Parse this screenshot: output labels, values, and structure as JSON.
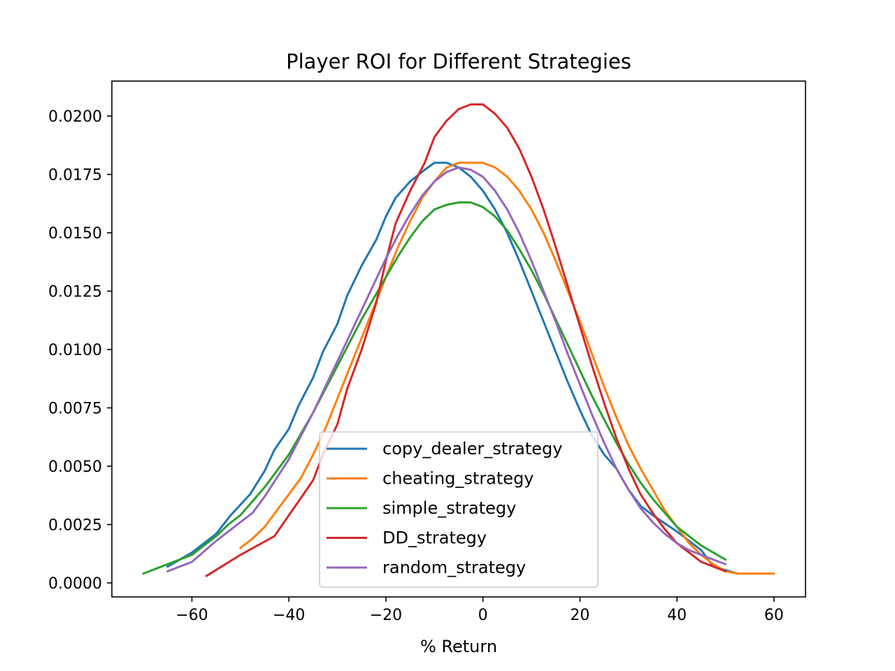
{
  "chart_data": {
    "type": "line",
    "title": "Player ROI for Different Strategies",
    "xlabel": "% Return",
    "ylabel": "",
    "xlim": [
      -76.5,
      66.5
    ],
    "ylim": [
      -0.0006,
      0.0215
    ],
    "x_ticks": [
      {
        "value": -60,
        "label": "−60"
      },
      {
        "value": -40,
        "label": "−40"
      },
      {
        "value": -20,
        "label": "−20"
      },
      {
        "value": 0,
        "label": "0"
      },
      {
        "value": 20,
        "label": "20"
      },
      {
        "value": 40,
        "label": "40"
      },
      {
        "value": 60,
        "label": "60"
      }
    ],
    "y_ticks": [
      {
        "value": 0.0,
        "label": "0.0000"
      },
      {
        "value": 0.0025,
        "label": "0.0025"
      },
      {
        "value": 0.005,
        "label": "0.0050"
      },
      {
        "value": 0.0075,
        "label": "0.0075"
      },
      {
        "value": 0.01,
        "label": "0.0100"
      },
      {
        "value": 0.0125,
        "label": "0.0125"
      },
      {
        "value": 0.015,
        "label": "0.0150"
      },
      {
        "value": 0.0175,
        "label": "0.0175"
      },
      {
        "value": 0.02,
        "label": "0.0200"
      }
    ],
    "grid": false,
    "legend": "lower center",
    "series": [
      {
        "name": "copy_dealer_strategy",
        "color": "#1f77b4",
        "points": [
          [
            -65,
            0.0007
          ],
          [
            -60,
            0.0013
          ],
          [
            -55,
            0.0021
          ],
          [
            -52,
            0.0029
          ],
          [
            -48,
            0.0038
          ],
          [
            -45,
            0.0048
          ],
          [
            -43,
            0.0057
          ],
          [
            -40,
            0.0066
          ],
          [
            -38,
            0.0076
          ],
          [
            -35,
            0.0088
          ],
          [
            -33,
            0.0099
          ],
          [
            -30,
            0.0111
          ],
          [
            -28,
            0.0123
          ],
          [
            -25,
            0.0136
          ],
          [
            -22,
            0.0147
          ],
          [
            -20,
            0.0157
          ],
          [
            -18,
            0.0165
          ],
          [
            -15,
            0.0172
          ],
          [
            -12,
            0.0177
          ],
          [
            -10,
            0.018
          ],
          [
            -7.5,
            0.018
          ],
          [
            -5,
            0.0178
          ],
          [
            -2.5,
            0.0174
          ],
          [
            0,
            0.0168
          ],
          [
            2.5,
            0.016
          ],
          [
            5,
            0.015
          ],
          [
            7.5,
            0.0138
          ],
          [
            10,
            0.0125
          ],
          [
            12.5,
            0.0112
          ],
          [
            15,
            0.0099
          ],
          [
            17.5,
            0.0086
          ],
          [
            20,
            0.0074
          ],
          [
            22.5,
            0.0063
          ],
          [
            25,
            0.0055
          ],
          [
            27.5,
            0.0049
          ],
          [
            30,
            0.004
          ],
          [
            32.5,
            0.0033
          ],
          [
            35,
            0.0029
          ],
          [
            40,
            0.0022
          ],
          [
            45,
            0.0014
          ],
          [
            47.5,
            0.0007
          ],
          [
            52.5,
            0.0004
          ]
        ]
      },
      {
        "name": "cheating_strategy",
        "color": "#ff7f0e",
        "points": [
          [
            -50,
            0.0015
          ],
          [
            -47.5,
            0.0019
          ],
          [
            -45,
            0.0024
          ],
          [
            -42.5,
            0.0031
          ],
          [
            -40,
            0.0038
          ],
          [
            -37.5,
            0.0045
          ],
          [
            -35,
            0.0055
          ],
          [
            -32.5,
            0.0066
          ],
          [
            -30,
            0.0079
          ],
          [
            -27.5,
            0.0092
          ],
          [
            -25,
            0.0105
          ],
          [
            -22.5,
            0.0118
          ],
          [
            -20,
            0.0131
          ],
          [
            -17.5,
            0.0144
          ],
          [
            -15,
            0.0155
          ],
          [
            -12.5,
            0.0165
          ],
          [
            -10,
            0.0172
          ],
          [
            -7.5,
            0.0178
          ],
          [
            -5,
            0.018
          ],
          [
            -2.5,
            0.018
          ],
          [
            0,
            0.018
          ],
          [
            2.5,
            0.0178
          ],
          [
            5,
            0.0174
          ],
          [
            7.5,
            0.0168
          ],
          [
            10,
            0.016
          ],
          [
            12.5,
            0.015
          ],
          [
            15,
            0.0138
          ],
          [
            17.5,
            0.0125
          ],
          [
            20,
            0.0112
          ],
          [
            22.5,
            0.0098
          ],
          [
            25,
            0.0084
          ],
          [
            27.5,
            0.0071
          ],
          [
            30,
            0.0059
          ],
          [
            32.5,
            0.0049
          ],
          [
            35,
            0.004
          ],
          [
            37.5,
            0.0031
          ],
          [
            40,
            0.0024
          ],
          [
            42.5,
            0.0017
          ],
          [
            45,
            0.0012
          ],
          [
            47.5,
            0.0008
          ],
          [
            50,
            0.0005
          ],
          [
            52.5,
            0.0004
          ],
          [
            60,
            0.0004
          ]
        ]
      },
      {
        "name": "simple_strategy",
        "color": "#2ca02c",
        "points": [
          [
            -70,
            0.0004
          ],
          [
            -65,
            0.0008
          ],
          [
            -60,
            0.0012
          ],
          [
            -57.5,
            0.0016
          ],
          [
            -55,
            0.002
          ],
          [
            -52.5,
            0.0025
          ],
          [
            -50,
            0.0029
          ],
          [
            -47.5,
            0.0035
          ],
          [
            -45,
            0.0041
          ],
          [
            -42.5,
            0.0048
          ],
          [
            -40,
            0.0055
          ],
          [
            -37.5,
            0.0064
          ],
          [
            -35,
            0.0073
          ],
          [
            -32.5,
            0.0083
          ],
          [
            -30,
            0.0093
          ],
          [
            -27.5,
            0.0103
          ],
          [
            -25,
            0.0113
          ],
          [
            -22.5,
            0.0122
          ],
          [
            -20,
            0.0131
          ],
          [
            -17.5,
            0.014
          ],
          [
            -15,
            0.0148
          ],
          [
            -12.5,
            0.0155
          ],
          [
            -10,
            0.016
          ],
          [
            -7.5,
            0.0162
          ],
          [
            -5,
            0.0163
          ],
          [
            -2.5,
            0.0163
          ],
          [
            0,
            0.0161
          ],
          [
            2.5,
            0.0157
          ],
          [
            5,
            0.0151
          ],
          [
            7.5,
            0.0143
          ],
          [
            10,
            0.0134
          ],
          [
            12.5,
            0.0124
          ],
          [
            15,
            0.0113
          ],
          [
            17.5,
            0.0102
          ],
          [
            20,
            0.0091
          ],
          [
            22.5,
            0.008
          ],
          [
            25,
            0.007
          ],
          [
            27.5,
            0.006
          ],
          [
            30,
            0.0051
          ],
          [
            32.5,
            0.0043
          ],
          [
            35,
            0.0036
          ],
          [
            37.5,
            0.003
          ],
          [
            40,
            0.0024
          ],
          [
            42.5,
            0.002
          ],
          [
            45,
            0.0016
          ],
          [
            47.5,
            0.0013
          ],
          [
            50,
            0.001
          ]
        ]
      },
      {
        "name": "DD_strategy",
        "color": "#d62728",
        "points": [
          [
            -57,
            0.0003
          ],
          [
            -50,
            0.0012
          ],
          [
            -43,
            0.002
          ],
          [
            -40,
            0.0029
          ],
          [
            -38,
            0.0035
          ],
          [
            -35,
            0.0044
          ],
          [
            -33,
            0.0055
          ],
          [
            -30,
            0.0068
          ],
          [
            -28,
            0.0083
          ],
          [
            -25,
            0.01
          ],
          [
            -22,
            0.012
          ],
          [
            -20,
            0.0138
          ],
          [
            -18,
            0.0154
          ],
          [
            -15,
            0.0168
          ],
          [
            -12,
            0.018
          ],
          [
            -10,
            0.0191
          ],
          [
            -7.5,
            0.0198
          ],
          [
            -5,
            0.0203
          ],
          [
            -2.5,
            0.0205
          ],
          [
            0,
            0.0205
          ],
          [
            2.5,
            0.0201
          ],
          [
            5,
            0.0195
          ],
          [
            7.5,
            0.0186
          ],
          [
            10,
            0.0174
          ],
          [
            12.5,
            0.016
          ],
          [
            15,
            0.0144
          ],
          [
            17.5,
            0.0127
          ],
          [
            20,
            0.011
          ],
          [
            22.5,
            0.0093
          ],
          [
            25,
            0.0077
          ],
          [
            27.5,
            0.0062
          ],
          [
            30,
            0.0049
          ],
          [
            32.5,
            0.0038
          ],
          [
            35,
            0.003
          ],
          [
            37.5,
            0.0023
          ],
          [
            40,
            0.0017
          ],
          [
            42.5,
            0.0013
          ],
          [
            45,
            0.0009
          ],
          [
            47.5,
            0.0007
          ],
          [
            50,
            0.0005
          ]
        ]
      },
      {
        "name": "random_strategy",
        "color": "#9467bd",
        "points": [
          [
            -65,
            0.0005
          ],
          [
            -60,
            0.0009
          ],
          [
            -55,
            0.0018
          ],
          [
            -50,
            0.0026
          ],
          [
            -47.5,
            0.003
          ],
          [
            -45,
            0.0037
          ],
          [
            -42.5,
            0.0045
          ],
          [
            -40,
            0.0053
          ],
          [
            -37.5,
            0.0063
          ],
          [
            -35,
            0.0073
          ],
          [
            -32.5,
            0.0084
          ],
          [
            -30,
            0.0095
          ],
          [
            -27.5,
            0.0106
          ],
          [
            -25,
            0.0117
          ],
          [
            -22.5,
            0.0128
          ],
          [
            -20,
            0.0139
          ],
          [
            -17.5,
            0.0149
          ],
          [
            -15,
            0.0158
          ],
          [
            -12.5,
            0.0166
          ],
          [
            -10,
            0.0172
          ],
          [
            -7.5,
            0.0176
          ],
          [
            -5,
            0.0178
          ],
          [
            -2.5,
            0.0177
          ],
          [
            0,
            0.0174
          ],
          [
            2.5,
            0.0168
          ],
          [
            5,
            0.016
          ],
          [
            7.5,
            0.015
          ],
          [
            10,
            0.0138
          ],
          [
            12.5,
            0.0125
          ],
          [
            15,
            0.0112
          ],
          [
            17.5,
            0.0098
          ],
          [
            20,
            0.0085
          ],
          [
            22.5,
            0.0072
          ],
          [
            25,
            0.006
          ],
          [
            27.5,
            0.0049
          ],
          [
            30,
            0.004
          ],
          [
            32.5,
            0.0032
          ],
          [
            35,
            0.0026
          ],
          [
            37.5,
            0.0021
          ],
          [
            40,
            0.0017
          ],
          [
            42.5,
            0.0014
          ],
          [
            45,
            0.0012
          ],
          [
            47.5,
            0.001
          ],
          [
            50,
            0.0008
          ]
        ]
      }
    ]
  }
}
